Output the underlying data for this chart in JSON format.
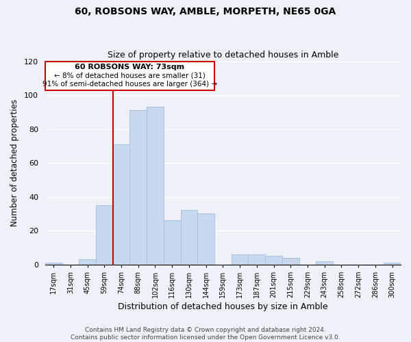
{
  "title": "60, ROBSONS WAY, AMBLE, MORPETH, NE65 0GA",
  "subtitle": "Size of property relative to detached houses in Amble",
  "xlabel": "Distribution of detached houses by size in Amble",
  "ylabel": "Number of detached properties",
  "bar_color": "#c8d8ee",
  "bar_edge_color": "#a8c0de",
  "bin_labels": [
    "17sqm",
    "31sqm",
    "45sqm",
    "59sqm",
    "74sqm",
    "88sqm",
    "102sqm",
    "116sqm",
    "130sqm",
    "144sqm",
    "159sqm",
    "173sqm",
    "187sqm",
    "201sqm",
    "215sqm",
    "229sqm",
    "243sqm",
    "258sqm",
    "272sqm",
    "286sqm",
    "300sqm"
  ],
  "bar_heights": [
    1,
    0,
    3,
    35,
    71,
    91,
    93,
    26,
    32,
    30,
    0,
    6,
    6,
    5,
    4,
    0,
    2,
    0,
    0,
    0,
    1
  ],
  "ylim": [
    0,
    120
  ],
  "yticks": [
    0,
    20,
    40,
    60,
    80,
    100,
    120
  ],
  "marker_label": "60 ROBSONS WAY: 73sqm",
  "annotation_line1": "← 8% of detached houses are smaller (31)",
  "annotation_line2": "91% of semi-detached houses are larger (364) →",
  "marker_color": "#cc0000",
  "annotation_box_edge": "#cc0000",
  "footer_line1": "Contains HM Land Registry data © Crown copyright and database right 2024.",
  "footer_line2": "Contains public sector information licensed under the Open Government Licence v3.0.",
  "background_color": "#eef2f8",
  "plot_background": "#eef2f8",
  "grid_color": "#ffffff"
}
